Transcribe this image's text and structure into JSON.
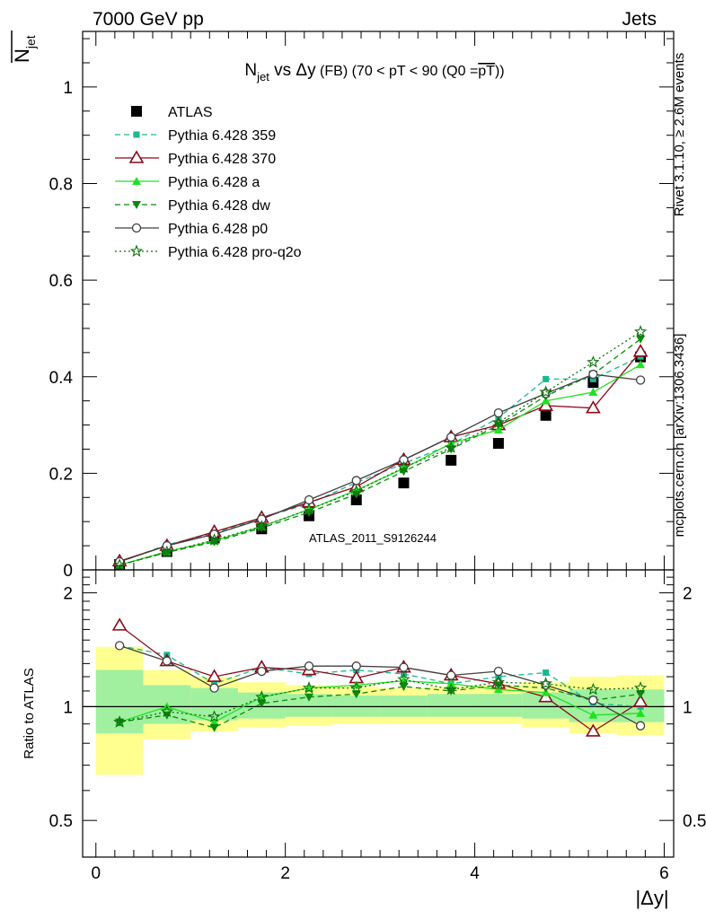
{
  "header": {
    "left": "7000 GeV pp",
    "right": "Jets"
  },
  "side_labels": {
    "right_top": "Rivet 3.1.10, ≥ 2.6M events",
    "right_bottom": "mcplots.cern.ch [arXiv:1306.3436]"
  },
  "chart_data": [
    {
      "type": "line",
      "title": "N_jet vs Δy (FB) (70 < pT < 90 (Q0 =pT))",
      "title_parts": {
        "n": "N",
        "jet": "jet",
        "vs": " vs ",
        "dy": "Δy",
        "rest": " (FB) (70 < pT <  90 (Q0 =",
        "pt": "pT",
        "close": "))"
      },
      "ylabel_top": "N",
      "ylabel_sub": "jet",
      "watermark": "ATLAS_2011_S9126244",
      "xlabel": "|Δy|",
      "xlim": [
        -0.14,
        6.1
      ],
      "ylim": [
        0,
        1.115
      ],
      "y_ticks": [
        "0",
        "0.2",
        "0.4",
        "0.6",
        "0.8",
        "1"
      ],
      "x_ticks": [
        "0",
        "2",
        "4",
        "6"
      ],
      "x": [
        0.25,
        0.75,
        1.25,
        1.75,
        2.25,
        2.75,
        3.25,
        3.75,
        4.25,
        4.75,
        5.25,
        5.75
      ],
      "series": [
        {
          "name": "ATLAS",
          "color": "#000000",
          "style": "data",
          "marker": "square",
          "values": [
            0.011,
            0.038,
            0.066,
            0.085,
            0.112,
            0.145,
            0.18,
            0.227,
            0.262,
            0.32,
            0.388,
            0.441
          ]
        },
        {
          "name": "Pythia 6.428 359",
          "color": "#1ab98f",
          "style": "dashed",
          "marker": "small-square",
          "values": [
            0.016,
            0.052,
            0.076,
            0.108,
            0.137,
            0.181,
            0.22,
            0.26,
            0.315,
            0.395,
            0.395,
            0.442
          ]
        },
        {
          "name": "Pythia 6.428 370",
          "color": "#8b0a1c",
          "style": "solid",
          "marker": "open-triangle",
          "values": [
            0.018,
            0.05,
            0.079,
            0.108,
            0.14,
            0.172,
            0.228,
            0.275,
            0.3,
            0.34,
            0.335,
            0.452
          ]
        },
        {
          "name": "Pythia 6.428 a",
          "color": "#22e022",
          "style": "solid",
          "marker": "triangle",
          "values": [
            0.01,
            0.038,
            0.06,
            0.09,
            0.125,
            0.165,
            0.21,
            0.262,
            0.29,
            0.35,
            0.368,
            0.425
          ]
        },
        {
          "name": "Pythia 6.428 dw",
          "color": "#0b8a0b",
          "style": "dashed",
          "marker": "down-triangle",
          "values": [
            0.01,
            0.036,
            0.058,
            0.087,
            0.119,
            0.157,
            0.204,
            0.25,
            0.3,
            0.36,
            0.405,
            0.478
          ]
        },
        {
          "name": "Pythia 6.428 p0",
          "color": "#404040",
          "style": "solid",
          "marker": "open-circle",
          "values": [
            0.017,
            0.05,
            0.074,
            0.105,
            0.145,
            0.185,
            0.228,
            0.275,
            0.325,
            0.365,
            0.405,
            0.393
          ]
        },
        {
          "name": "Pythia 6.428 pro-q2o",
          "color": "#0b700b",
          "style": "dotted",
          "marker": "star",
          "values": [
            0.01,
            0.037,
            0.062,
            0.09,
            0.125,
            0.163,
            0.212,
            0.253,
            0.305,
            0.368,
            0.43,
            0.493
          ]
        }
      ]
    },
    {
      "type": "line",
      "ylabel": "Ratio to ATLAS",
      "xlabel": "|Δy|",
      "log_y": true,
      "ylim": [
        0.4,
        2.3
      ],
      "y_ticks": [
        "0.5",
        "1",
        "2"
      ],
      "x_ticks": [
        "0",
        "2",
        "4",
        "6"
      ],
      "bands": {
        "edges": [
          0,
          0.5,
          1,
          1.5,
          2,
          2.5,
          3,
          3.5,
          4,
          4.5,
          5,
          5.5,
          6
        ],
        "inner_color": "#a0f0a0",
        "outer_color": "#ffff90",
        "inner": [
          [
            0.85,
            1.25
          ],
          [
            0.9,
            1.14
          ],
          [
            0.92,
            1.12
          ],
          [
            0.93,
            1.09
          ],
          [
            0.94,
            1.08
          ],
          [
            0.94,
            1.07
          ],
          [
            0.94,
            1.07
          ],
          [
            0.94,
            1.08
          ],
          [
            0.94,
            1.08
          ],
          [
            0.93,
            1.09
          ],
          [
            0.91,
            1.11
          ],
          [
            0.91,
            1.11
          ]
        ],
        "outer": [
          [
            0.66,
            1.44
          ],
          [
            0.82,
            1.25
          ],
          [
            0.86,
            1.2
          ],
          [
            0.88,
            1.16
          ],
          [
            0.89,
            1.14
          ],
          [
            0.9,
            1.13
          ],
          [
            0.9,
            1.12
          ],
          [
            0.9,
            1.13
          ],
          [
            0.9,
            1.14
          ],
          [
            0.88,
            1.16
          ],
          [
            0.85,
            1.2
          ],
          [
            0.84,
            1.21
          ]
        ]
      },
      "series": [
        {
          "name": "Pythia 6.428 359",
          "values": [
            1.45,
            1.37,
            1.15,
            1.27,
            1.22,
            1.25,
            1.22,
            1.15,
            1.2,
            1.23,
            1.02,
            1.0
          ]
        },
        {
          "name": "Pythia 6.428 370",
          "values": [
            1.64,
            1.32,
            1.2,
            1.27,
            1.25,
            1.19,
            1.27,
            1.21,
            1.15,
            1.06,
            0.86,
            1.03
          ]
        },
        {
          "name": "Pythia 6.428 a",
          "values": [
            0.91,
            1.0,
            0.91,
            1.06,
            1.12,
            1.14,
            1.17,
            1.15,
            1.11,
            1.09,
            0.95,
            0.96
          ]
        },
        {
          "name": "Pythia 6.428 dw",
          "values": [
            0.91,
            0.95,
            0.88,
            1.02,
            1.06,
            1.08,
            1.13,
            1.1,
            1.14,
            1.12,
            1.04,
            1.08
          ]
        },
        {
          "name": "Pythia 6.428 p0",
          "values": [
            1.45,
            1.32,
            1.12,
            1.24,
            1.28,
            1.28,
            1.27,
            1.21,
            1.24,
            1.14,
            1.04,
            0.89
          ]
        },
        {
          "name": "Pythia 6.428 pro-q2o",
          "values": [
            0.91,
            0.97,
            0.94,
            1.06,
            1.12,
            1.12,
            1.18,
            1.11,
            1.16,
            1.15,
            1.11,
            1.12
          ]
        }
      ]
    }
  ]
}
